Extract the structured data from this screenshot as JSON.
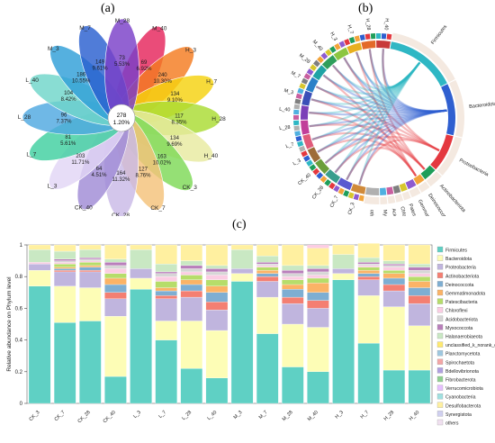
{
  "panels": {
    "a": "(a)",
    "b": "(b)",
    "c": "(c)"
  },
  "colors": {
    "phyla": [
      "#5fd0c4",
      "#fdfdb6",
      "#c0b5de",
      "#f47f72",
      "#7eaed2",
      "#fbb366",
      "#b6dd6a",
      "#fbcde3",
      "#d6d6d6",
      "#b97fbb",
      "#c9e8c3",
      "#ffea6f",
      "#9ec8e0",
      "#f4a6a6",
      "#b0a0e0",
      "#90d090",
      "#e6c0ff",
      "#a0e0e0",
      "#fff0a0",
      "#d0d0f0",
      "#f0e0f0"
    ]
  },
  "venn": {
    "center": {
      "count": "278",
      "pct": "1.20%"
    },
    "petals": [
      {
        "name": "M_40",
        "count": "69",
        "pct": "6.92%",
        "color": "#e5245b"
      },
      {
        "name": "H_3",
        "count": "240",
        "pct": "10.30%",
        "color": "#f47b20"
      },
      {
        "name": "H_7",
        "count": "134",
        "pct": "9.10%",
        "color": "#f5d20f"
      },
      {
        "name": "H_28",
        "count": "117",
        "pct": "8.35%",
        "color": "#aadc32"
      },
      {
        "name": "H_40",
        "count": "134",
        "pct": "9.69%",
        "color": "#e8eaa0"
      },
      {
        "name": "CK_3",
        "count": "163",
        "pct": "10.02%",
        "color": "#7ed957"
      },
      {
        "name": "CK_7",
        "count": "127",
        "pct": "8.76%",
        "color": "#f4c27a"
      },
      {
        "name": "CK_28",
        "count": "164",
        "pct": "11.32%",
        "color": "#c9b9e6"
      },
      {
        "name": "CK_40",
        "count": "64",
        "pct": "4.51%",
        "color": "#a08bd6"
      },
      {
        "name": "L_3",
        "count": "203",
        "pct": "11.71%",
        "color": "#e2d6f5"
      },
      {
        "name": "L_7",
        "count": "81",
        "pct": "5.61%",
        "color": "#3fcfa0"
      },
      {
        "name": "L_28",
        "count": "96",
        "pct": "7.37%",
        "color": "#4fa8e0"
      },
      {
        "name": "L_40",
        "count": "104",
        "pct": "8.42%",
        "color": "#6fd6c9"
      },
      {
        "name": "M_3",
        "count": "186",
        "pct": "10.55%",
        "color": "#2f9fd8"
      },
      {
        "name": "M_7",
        "count": "149",
        "pct": "9.61%",
        "color": "#2a5fd0"
      },
      {
        "name": "M_28",
        "count": "73",
        "pct": "5.53%",
        "color": "#7a3fc8"
      }
    ]
  },
  "chord": {
    "samples": [
      "H_40",
      "H_28",
      "H_7",
      "H_3",
      "M_40",
      "M_28",
      "M_7",
      "M_3",
      "L_40",
      "L_28",
      "L_7",
      "L_3",
      "CK_40",
      "CK_28",
      "CK_7",
      "CK_3"
    ],
    "phyla": [
      "Firmicutes",
      "Bacteroidota",
      "Proteobacteria",
      "Actinobacteriota",
      "Deinococcota",
      "Gemmatimonadota",
      "Patescibacteria",
      "Chloroflexi",
      "Acidobacteriota",
      "Myxococcota",
      "others"
    ]
  },
  "chart_data": {
    "type": "bar",
    "stacked": true,
    "ylabel": "Relative abundance on Phylum level",
    "ylim": [
      0,
      1
    ],
    "yticks": [
      "0",
      "0.2",
      "0.4",
      "0.6",
      "0.8",
      "1"
    ],
    "categories": [
      "CK_3",
      "CK_7",
      "CK_28",
      "CK_40",
      "L_3",
      "L_7",
      "L_28",
      "L_40",
      "M_3",
      "M_7",
      "M_28",
      "M_40",
      "H_3",
      "H_7",
      "H_28",
      "H_40"
    ],
    "legend": [
      "Firmicutes",
      "Bacteroidota",
      "Proteobacteria",
      "Actinobacteriota",
      "Deinococcota",
      "Gemmatimonadota",
      "Patescibacteria",
      "Chloroflexi",
      "Acidobacteriota",
      "Myxococcota",
      "Halanaerobiaeota",
      "unclassified_k_norank_d_Bacteria",
      "Planctomycetota",
      "Spirochaetota",
      "Bdellovibrionota",
      "Fibrobacterota",
      "Verrucomicrobiota",
      "Cyanobacteria",
      "Desulfobacterota",
      "Synergistota",
      "others"
    ],
    "series": [
      {
        "name": "Firmicutes",
        "values": [
          0.74,
          0.51,
          0.52,
          0.17,
          0.72,
          0.4,
          0.22,
          0.16,
          0.77,
          0.44,
          0.23,
          0.2,
          0.78,
          0.38,
          0.21,
          0.21
        ]
      },
      {
        "name": "Bacteroidota",
        "values": [
          0.1,
          0.23,
          0.21,
          0.38,
          0.07,
          0.12,
          0.3,
          0.3,
          0.05,
          0.23,
          0.27,
          0.28,
          0.04,
          0.3,
          0.4,
          0.28
        ]
      },
      {
        "name": "Proteobacteria",
        "values": [
          0.04,
          0.09,
          0.1,
          0.11,
          0.06,
          0.14,
          0.15,
          0.13,
          0.03,
          0.1,
          0.13,
          0.12,
          0.03,
          0.1,
          0.1,
          0.14
        ]
      },
      {
        "name": "Actinobacteriota",
        "values": [
          0.0,
          0.01,
          0.01,
          0.04,
          0.0,
          0.02,
          0.04,
          0.05,
          0.0,
          0.03,
          0.04,
          0.05,
          0.0,
          0.02,
          0.04,
          0.05
        ]
      },
      {
        "name": "Deinococcota",
        "values": [
          0.0,
          0.01,
          0.02,
          0.05,
          0.0,
          0.03,
          0.04,
          0.06,
          0.0,
          0.02,
          0.05,
          0.05,
          0.0,
          0.02,
          0.04,
          0.05
        ]
      },
      {
        "name": "Gemmatimonadota",
        "values": [
          0.0,
          0.01,
          0.01,
          0.04,
          0.0,
          0.02,
          0.03,
          0.04,
          0.0,
          0.02,
          0.03,
          0.06,
          0.0,
          0.02,
          0.03,
          0.04
        ]
      },
      {
        "name": "Patescibacteria",
        "values": [
          0.0,
          0.02,
          0.02,
          0.03,
          0.0,
          0.04,
          0.03,
          0.04,
          0.0,
          0.02,
          0.03,
          0.03,
          0.0,
          0.02,
          0.02,
          0.03
        ]
      },
      {
        "name": "Chloroflexi",
        "values": [
          0.01,
          0.01,
          0.01,
          0.03,
          0.0,
          0.03,
          0.02,
          0.03,
          0.0,
          0.01,
          0.02,
          0.02,
          0.0,
          0.01,
          0.02,
          0.02
        ]
      },
      {
        "name": "Acidobacteriota",
        "values": [
          0.0,
          0.01,
          0.01,
          0.02,
          0.0,
          0.02,
          0.02,
          0.02,
          0.0,
          0.01,
          0.02,
          0.02,
          0.0,
          0.01,
          0.01,
          0.02
        ]
      },
      {
        "name": "Myxococcota",
        "values": [
          0.0,
          0.01,
          0.01,
          0.02,
          0.0,
          0.01,
          0.02,
          0.02,
          0.0,
          0.01,
          0.02,
          0.02,
          0.0,
          0.01,
          0.01,
          0.02
        ]
      },
      {
        "name": "Halanaerobiaeota",
        "values": [
          0.08,
          0.05,
          0.05,
          0.02,
          0.12,
          0.05,
          0.03,
          0.02,
          0.12,
          0.04,
          0.03,
          0.02,
          0.09,
          0.03,
          0.02,
          0.02
        ]
      },
      {
        "name": "others",
        "values": [
          0.03,
          0.04,
          0.03,
          0.09,
          0.03,
          0.12,
          0.1,
          0.13,
          0.03,
          0.07,
          0.13,
          0.11,
          0.06,
          0.09,
          0.1,
          0.12
        ]
      }
    ]
  }
}
